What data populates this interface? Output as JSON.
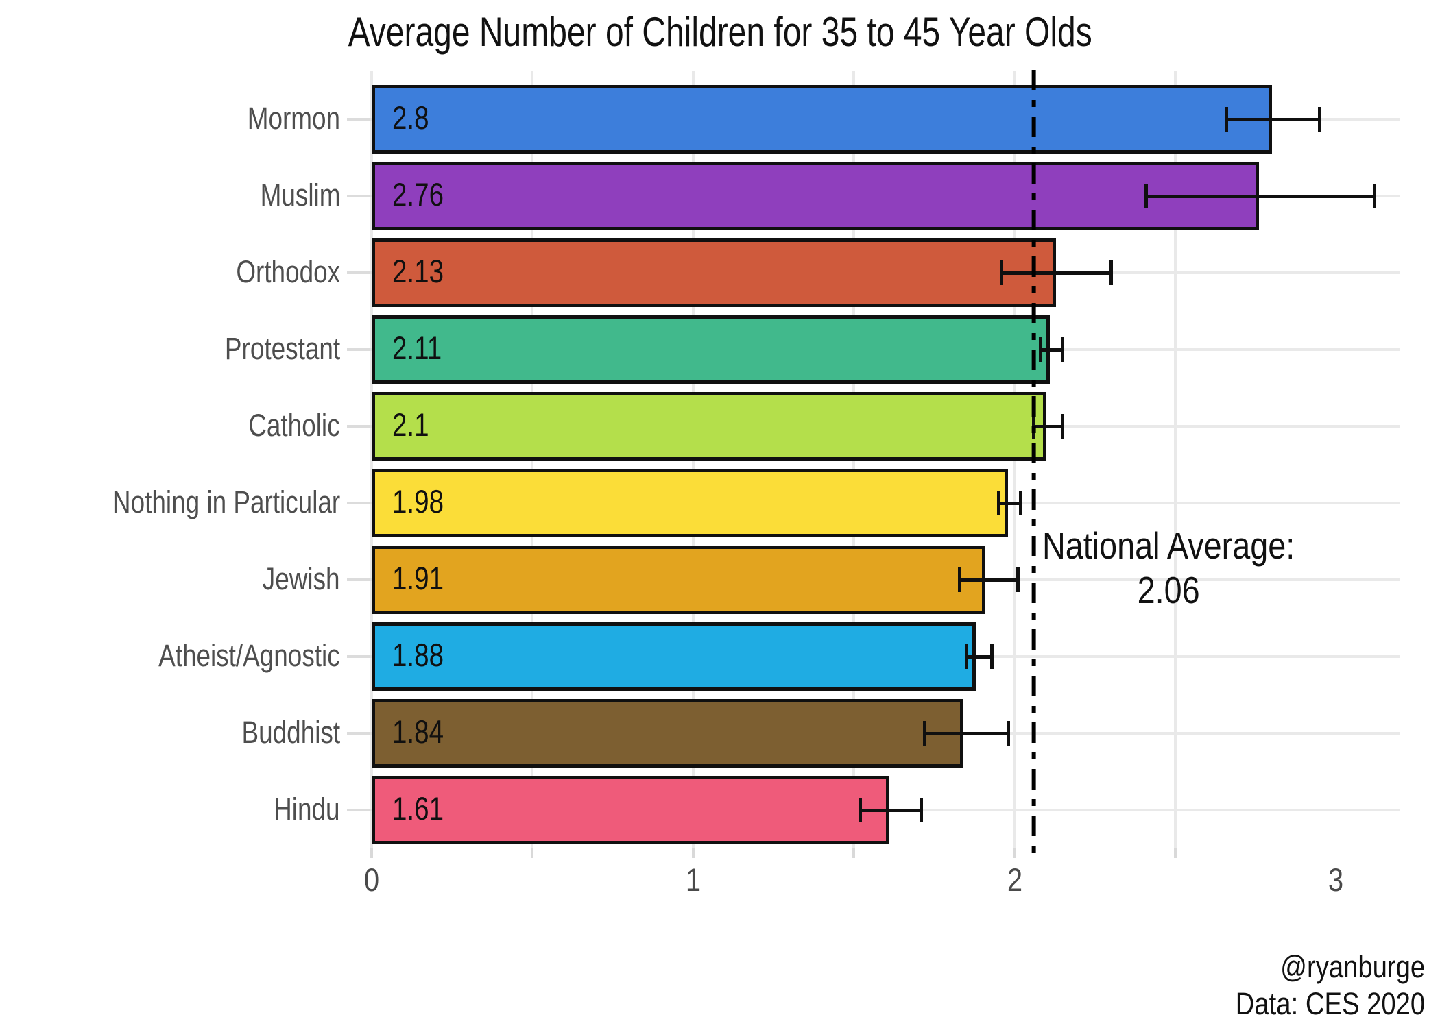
{
  "chart_data": {
    "type": "bar",
    "orientation": "horizontal",
    "title": "Average Number of Children for 35 to 45 Year Olds",
    "categories": [
      "Mormon",
      "Muslim",
      "Orthodox",
      "Protestant",
      "Catholic",
      "Nothing in Particular",
      "Jewish",
      "Atheist/Agnostic",
      "Buddhist",
      "Hindu"
    ],
    "values": [
      2.8,
      2.76,
      2.13,
      2.11,
      2.1,
      1.98,
      1.91,
      1.88,
      1.84,
      1.61
    ],
    "value_labels": [
      "2.8",
      "2.76",
      "2.13",
      "2.11",
      "2.1",
      "1.98",
      "1.91",
      "1.88",
      "1.84",
      "1.61"
    ],
    "error_low": [
      2.66,
      2.41,
      1.96,
      2.08,
      2.06,
      1.95,
      1.83,
      1.85,
      1.72,
      1.52
    ],
    "error_high": [
      2.95,
      3.12,
      2.3,
      2.15,
      2.15,
      2.02,
      2.01,
      1.93,
      1.98,
      1.71
    ],
    "bar_colors": [
      "#3d7edb",
      "#8f3fbd",
      "#cf5a3c",
      "#41b98c",
      "#b4df4b",
      "#fbdd38",
      "#e2a41f",
      "#1face3",
      "#7d5f31",
      "#ef5b7a"
    ],
    "bar_border_color": "#101010",
    "grid_color": "#e9e9e9",
    "xlabel": "",
    "ylabel": "",
    "xlim": [
      0,
      3.2
    ],
    "x_ticks": [
      "0",
      "1",
      "2",
      "3"
    ],
    "x_tick_values": [
      0,
      1,
      2,
      3
    ],
    "x_minor_step": 0.5,
    "grid": "on",
    "national_average": {
      "value": 2.06,
      "label_line1": "National Average:",
      "label_line2": "2.06",
      "line_color": "#000000",
      "line_style": "dash-dot"
    },
    "attribution_line1": "@ryanburge",
    "attribution_line2": "Data: CES 2020"
  }
}
